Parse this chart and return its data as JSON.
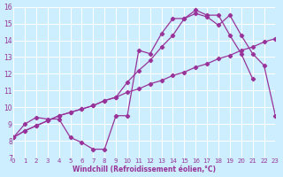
{
  "background_color": "#cceeff",
  "grid_color": "#ffffff",
  "line_color": "#993399",
  "xlabel": "Windchill (Refroidissement éolien,°C)",
  "xlim": [
    0,
    23
  ],
  "ylim": [
    7,
    16
  ],
  "yticks": [
    7,
    8,
    9,
    10,
    11,
    12,
    13,
    14,
    15,
    16
  ],
  "xticks": [
    0,
    1,
    2,
    3,
    4,
    5,
    6,
    7,
    8,
    9,
    10,
    11,
    12,
    13,
    14,
    15,
    16,
    17,
    18,
    19,
    20,
    21,
    22,
    23
  ],
  "line1_x": [
    0,
    1,
    2,
    3,
    4,
    5,
    6,
    7,
    8,
    9,
    10,
    11,
    12,
    13,
    14,
    15,
    16,
    17,
    18,
    19,
    20,
    21
  ],
  "line1_y": [
    8.2,
    9.0,
    9.4,
    9.3,
    9.3,
    8.2,
    7.9,
    7.5,
    7.5,
    9.5,
    9.5,
    13.4,
    13.2,
    14.4,
    15.3,
    15.3,
    15.8,
    15.5,
    15.5,
    14.3,
    13.2,
    11.7
  ],
  "line2_x": [
    0,
    1,
    2,
    3,
    4,
    5,
    6,
    7,
    8,
    9,
    10,
    11,
    12,
    13,
    14,
    15,
    16,
    17,
    18,
    19,
    20,
    21,
    22,
    23
  ],
  "line2_y": [
    8.2,
    8.6,
    8.9,
    9.2,
    9.5,
    9.7,
    9.9,
    10.1,
    10.4,
    10.6,
    10.9,
    11.1,
    11.4,
    11.6,
    11.9,
    12.1,
    12.4,
    12.6,
    12.9,
    13.1,
    13.4,
    13.6,
    13.9,
    14.1
  ],
  "line3_x": [
    0,
    1,
    2,
    3,
    4,
    5,
    6,
    7,
    8,
    9,
    10,
    11,
    12,
    13,
    14,
    15,
    16,
    17,
    18,
    19,
    20,
    21,
    22,
    23
  ],
  "line3_y": [
    8.2,
    8.6,
    8.9,
    9.2,
    9.5,
    9.7,
    9.9,
    10.1,
    10.4,
    10.6,
    11.5,
    12.2,
    12.8,
    13.6,
    14.3,
    15.3,
    15.6,
    15.4,
    14.9,
    15.5,
    14.3,
    13.2,
    12.5,
    9.5
  ]
}
